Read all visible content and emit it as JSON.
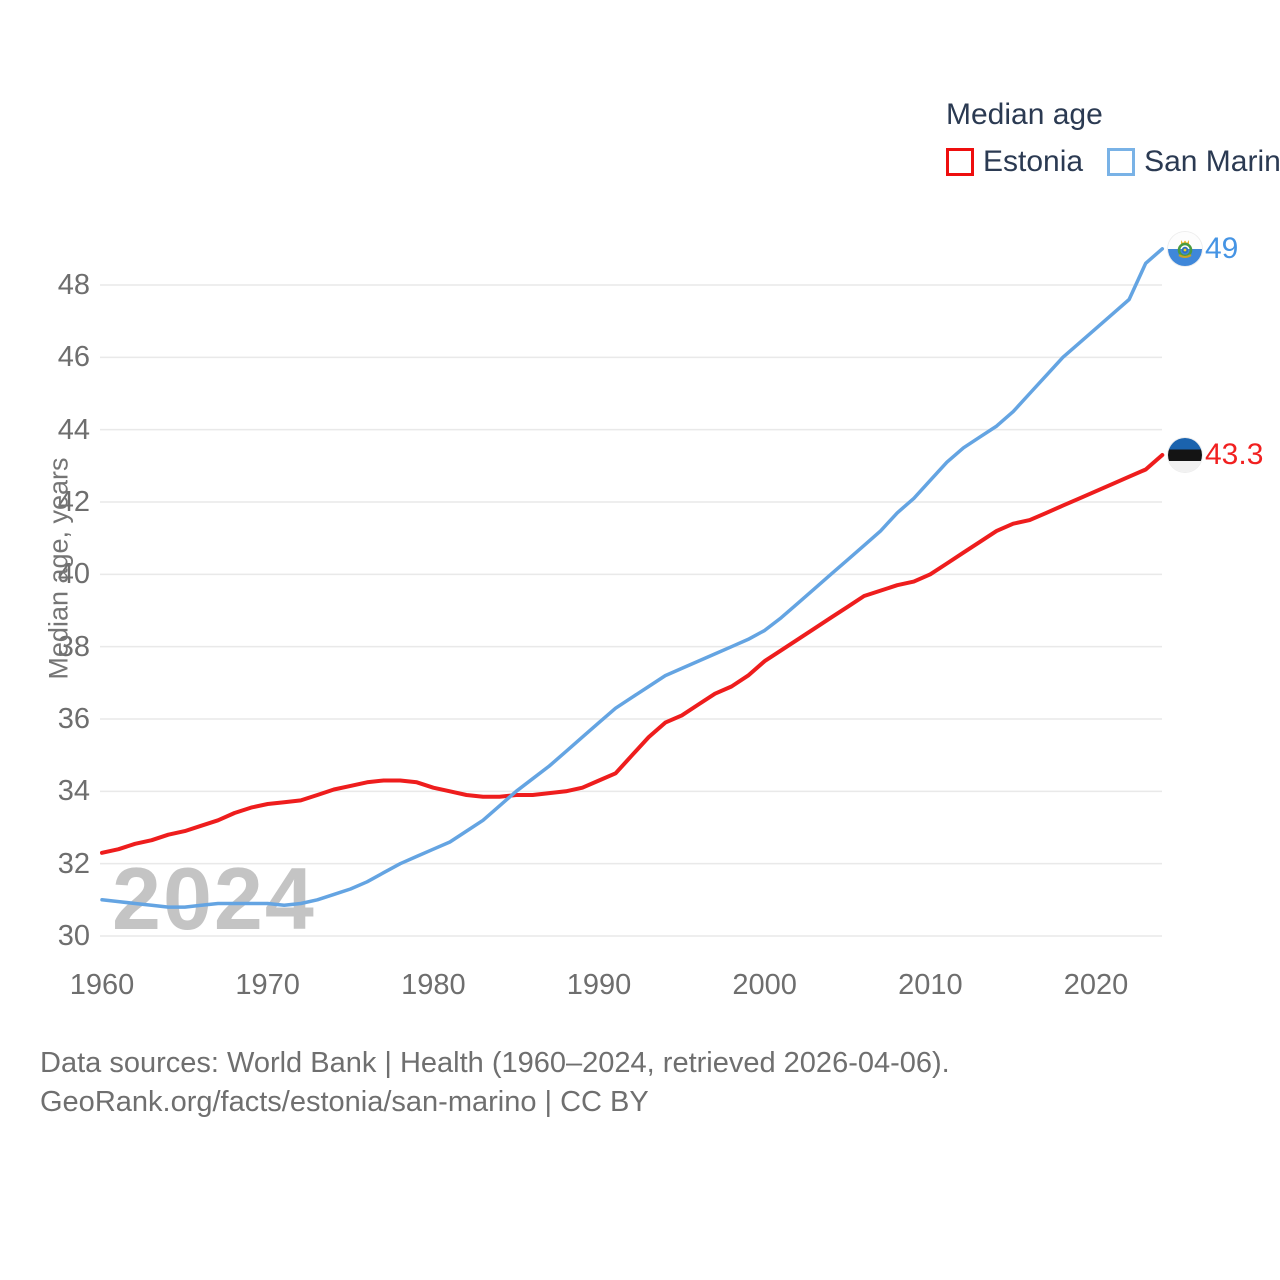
{
  "legend": {
    "title": "Median age",
    "items": [
      {
        "label": "Estonia",
        "color": "#ee0e0e"
      },
      {
        "label": "San Marino",
        "color": "#79b2e6"
      }
    ]
  },
  "watermark": "2024",
  "y_axis": {
    "title": "Median age, years",
    "ticks": [
      30,
      32,
      34,
      36,
      38,
      40,
      42,
      44,
      46,
      48
    ]
  },
  "x_axis": {
    "ticks": [
      1960,
      1970,
      1980,
      1990,
      2000,
      2010,
      2020
    ]
  },
  "end_labels": {
    "san_marino": {
      "value": "49",
      "flag": "san-marino-flag"
    },
    "estonia": {
      "value": "43.3",
      "flag": "estonia-flag"
    }
  },
  "footer": {
    "line1": "Data sources: World Bank | Health (1960–2024, retrieved 2026-04-06).",
    "line2": "GeoRank.org/facts/estonia/san-marino | CC BY"
  },
  "chart_data": {
    "type": "line",
    "title": "Median age",
    "ylabel": "Median age, years",
    "xlabel": "",
    "ylim": [
      29.5,
      49.6
    ],
    "xlim": [
      1960,
      2024
    ],
    "grid": "horizontal",
    "legend_position": "top-right",
    "yticks": [
      30,
      32,
      34,
      36,
      38,
      40,
      42,
      44,
      46,
      48
    ],
    "xticks": [
      1960,
      1970,
      1980,
      1990,
      2000,
      2010,
      2020
    ],
    "x": [
      1960,
      1961,
      1962,
      1963,
      1964,
      1965,
      1966,
      1967,
      1968,
      1969,
      1970,
      1971,
      1972,
      1973,
      1974,
      1975,
      1976,
      1977,
      1978,
      1979,
      1980,
      1981,
      1982,
      1983,
      1984,
      1985,
      1986,
      1987,
      1988,
      1989,
      1990,
      1991,
      1992,
      1993,
      1994,
      1995,
      1996,
      1997,
      1998,
      1999,
      2000,
      2001,
      2002,
      2003,
      2004,
      2005,
      2006,
      2007,
      2008,
      2009,
      2010,
      2011,
      2012,
      2013,
      2014,
      2015,
      2016,
      2017,
      2018,
      2019,
      2020,
      2021,
      2022,
      2023,
      2024
    ],
    "series": [
      {
        "name": "Estonia",
        "color": "#ee1d1d",
        "label_color": "#f12020",
        "end_value": 43.3,
        "values": [
          32.3,
          32.4,
          32.55,
          32.65,
          32.8,
          32.9,
          33.05,
          33.2,
          33.4,
          33.55,
          33.65,
          33.7,
          33.75,
          33.9,
          34.05,
          34.15,
          34.25,
          34.3,
          34.3,
          34.25,
          34.1,
          34.0,
          33.9,
          33.85,
          33.85,
          33.9,
          33.9,
          33.95,
          34.0,
          34.1,
          34.3,
          34.5,
          35.0,
          35.5,
          35.9,
          36.1,
          36.4,
          36.7,
          36.9,
          37.2,
          37.6,
          37.9,
          38.2,
          38.5,
          38.8,
          39.1,
          39.4,
          39.55,
          39.7,
          39.8,
          40.0,
          40.3,
          40.6,
          40.9,
          41.2,
          41.4,
          41.5,
          41.7,
          41.9,
          42.1,
          42.3,
          42.5,
          42.7,
          42.9,
          43.3
        ]
      },
      {
        "name": "San Marino",
        "color": "#64a4e2",
        "label_color": "#4594e4",
        "end_value": 49,
        "values": [
          31.0,
          30.95,
          30.9,
          30.85,
          30.8,
          30.8,
          30.85,
          30.9,
          30.9,
          30.9,
          30.9,
          30.85,
          30.9,
          31.0,
          31.15,
          31.3,
          31.5,
          31.75,
          32.0,
          32.2,
          32.4,
          32.6,
          32.9,
          33.2,
          33.6,
          34.0,
          34.35,
          34.7,
          35.1,
          35.5,
          35.9,
          36.3,
          36.6,
          36.9,
          37.2,
          37.4,
          37.6,
          37.8,
          38.0,
          38.2,
          38.45,
          38.8,
          39.2,
          39.6,
          40.0,
          40.4,
          40.8,
          41.2,
          41.7,
          42.1,
          42.6,
          43.1,
          43.5,
          43.8,
          44.1,
          44.5,
          45.0,
          45.5,
          46.0,
          46.4,
          46.8,
          47.2,
          47.6,
          48.6,
          49.0
        ]
      }
    ]
  }
}
